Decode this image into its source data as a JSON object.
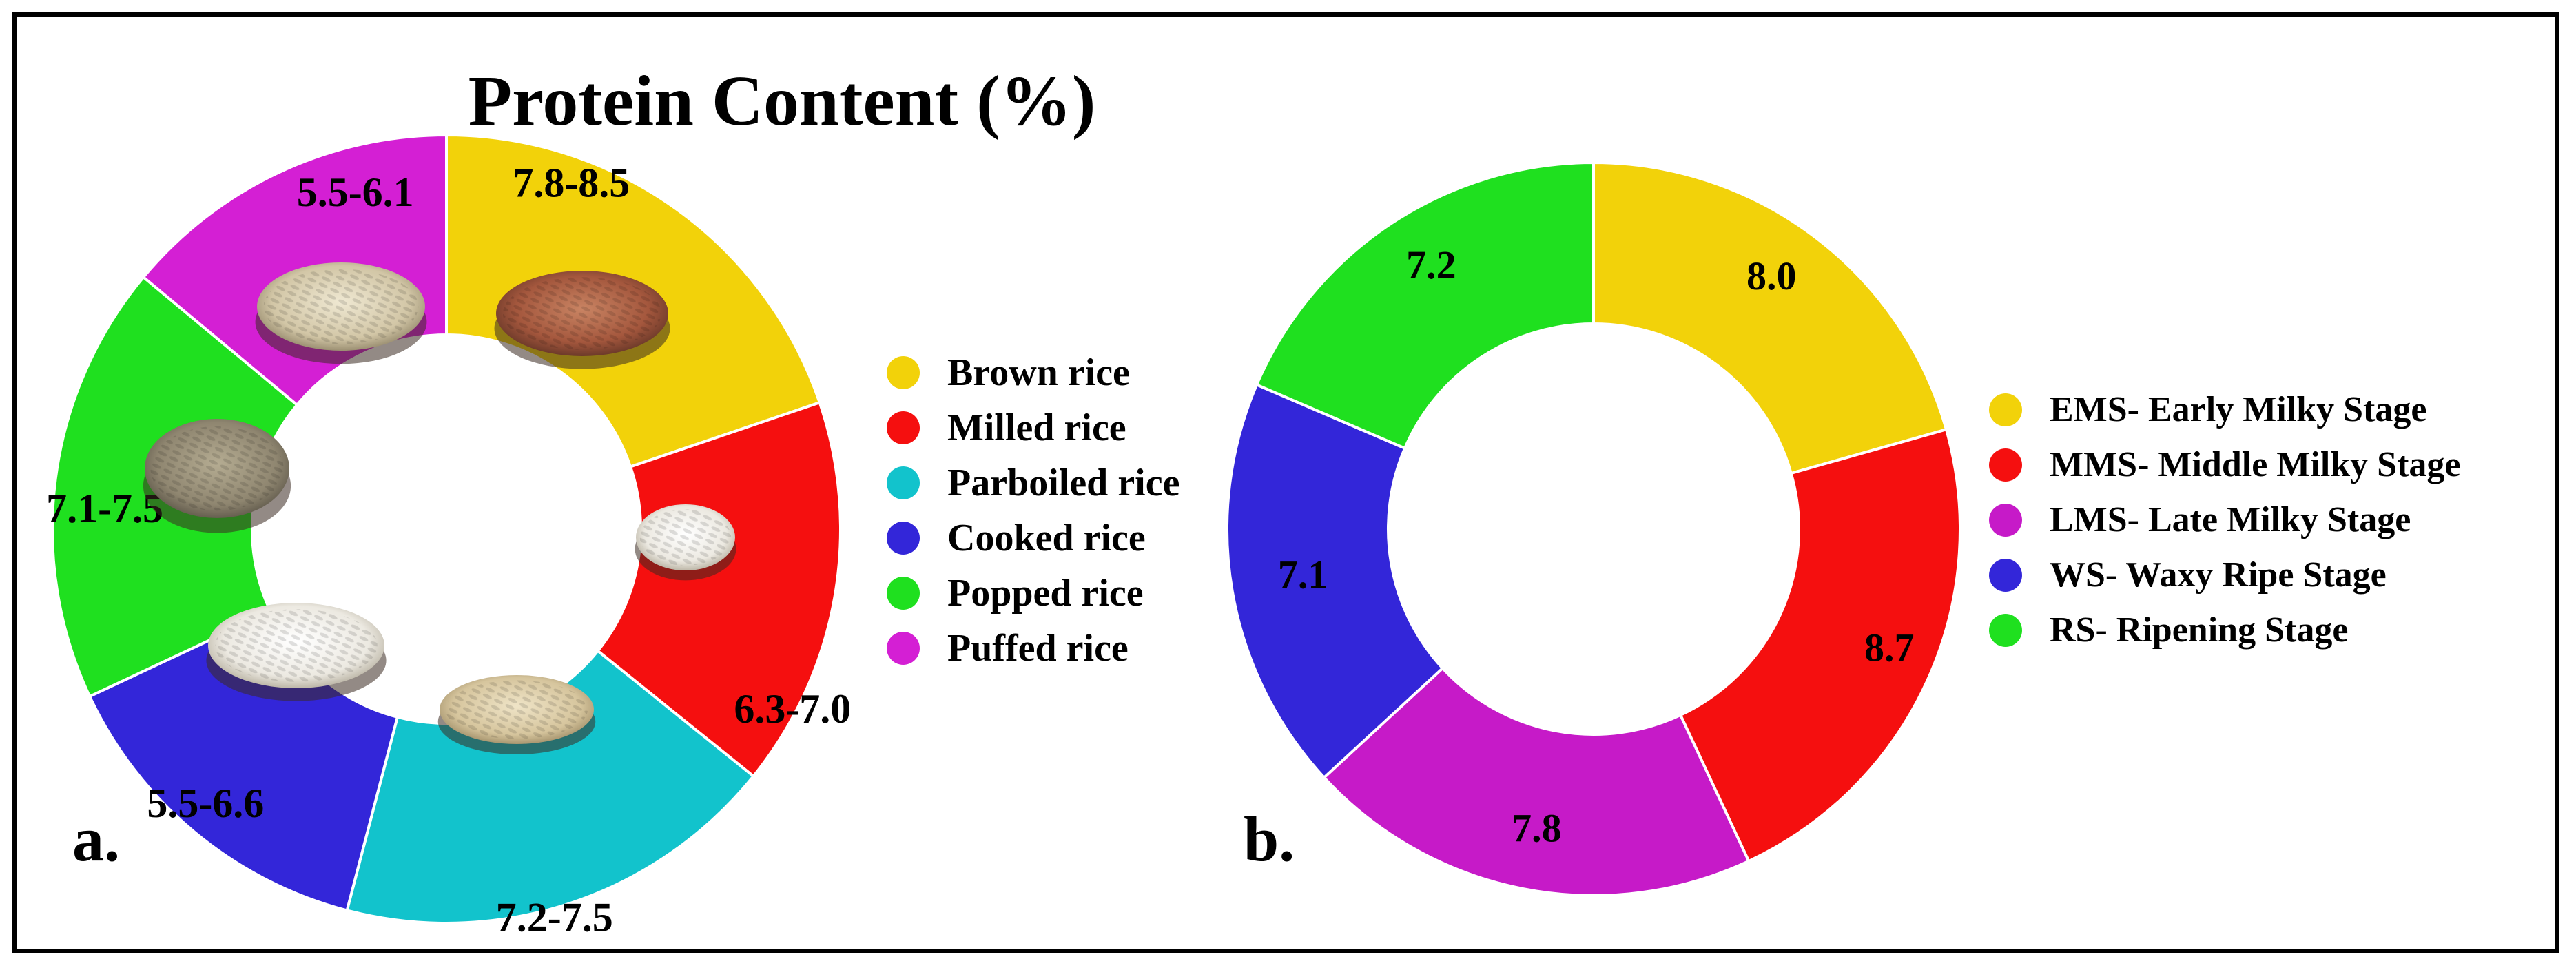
{
  "title": "Protein Content (%)",
  "colors": {
    "yellow": "#f2d20a",
    "red": "#f50f0f",
    "cyan": "#12c3cc",
    "blue": "#3326d9",
    "green": "#1fe01f",
    "magenta": "#d41fd4",
    "magenta_b": "#c61ac8"
  },
  "chart_data": [
    {
      "type": "pie",
      "donut": true,
      "panel_label": "a.",
      "title": "Protein Content (%)",
      "categories": [
        "Brown rice",
        "Milled rice",
        "Parboiled rice",
        "Cooked rice",
        "Popped rice",
        "Puffed rice"
      ],
      "values": [
        7.8,
        6.3,
        7.2,
        5.5,
        7.1,
        5.5
      ],
      "value_labels": [
        "7.8-8.5",
        "6.3-7.0",
        "7.2-7.5",
        "5.5-6.6",
        "7.1-7.5",
        "5.5-6.1"
      ],
      "colors": [
        "#f2d20a",
        "#f50f0f",
        "#12c3cc",
        "#3326d9",
        "#1fe01f",
        "#d41fd4"
      ],
      "legend_position": "right",
      "slice_images": [
        "brown-rice-bowl",
        "milled-rice-bowl",
        "parboiled-rice-bowl",
        "cooked-rice-bowl",
        "popped-rice-bowl",
        "puffed-rice-bowl"
      ]
    },
    {
      "type": "pie",
      "donut": true,
      "panel_label": "b.",
      "categories": [
        "EMS- Early Milky Stage",
        "MMS- Middle Milky Stage",
        "LMS- Late Milky Stage",
        "WS- Waxy Ripe Stage",
        "RS- Ripening Stage"
      ],
      "values": [
        8.0,
        8.7,
        7.8,
        7.1,
        7.2
      ],
      "value_labels": [
        "8.0",
        "8.7",
        "7.8",
        "7.1",
        "7.2"
      ],
      "colors": [
        "#f2d20a",
        "#f50f0f",
        "#c61ac8",
        "#3326d9",
        "#1fe01f"
      ],
      "legend_position": "right"
    }
  ]
}
